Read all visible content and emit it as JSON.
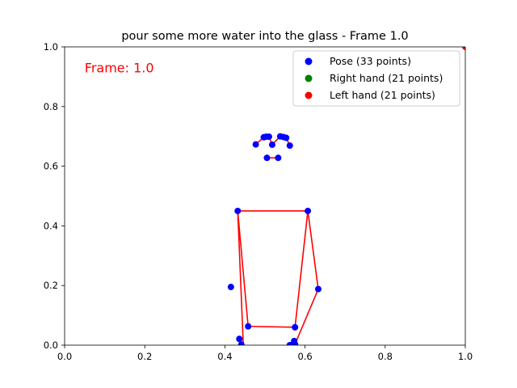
{
  "chart_data": {
    "type": "scatter",
    "title": "pour some more water into the glass - Frame 1.0",
    "annotation": {
      "text": "Frame: 1.0",
      "color": "#ff0000"
    },
    "xlim": [
      0,
      1
    ],
    "ylim": [
      0,
      1
    ],
    "x_ticks": [
      "0.0",
      "0.2",
      "0.4",
      "0.6",
      "0.8",
      "1.0"
    ],
    "y_ticks": [
      "0.0",
      "0.2",
      "0.4",
      "0.6",
      "0.8",
      "1.0"
    ],
    "grid": false,
    "legend_position": "top-right",
    "series": [
      {
        "name": "Pose (33 points)",
        "color": "#0000ff",
        "points": [
          [
            0.518,
            0.672
          ],
          [
            0.497,
            0.697
          ],
          [
            0.503,
            0.699
          ],
          [
            0.51,
            0.699
          ],
          [
            0.538,
            0.7
          ],
          [
            0.546,
            0.698
          ],
          [
            0.553,
            0.695
          ],
          [
            0.477,
            0.673
          ],
          [
            0.562,
            0.669
          ],
          [
            0.505,
            0.628
          ],
          [
            0.533,
            0.628
          ],
          [
            0.432,
            0.45
          ],
          [
            0.607,
            0.45
          ],
          [
            0.415,
            0.195
          ],
          [
            0.633,
            0.188
          ],
          [
            0.436,
            0.021
          ],
          [
            0.573,
            0.014
          ],
          [
            0.441,
            0.002
          ],
          [
            0.57,
            0.003
          ],
          [
            0.458,
            0.063
          ],
          [
            0.575,
            0.06
          ],
          [
            0.562,
            0.0
          ],
          [
            0.575,
            0.003
          ]
        ]
      },
      {
        "name": "Right hand (21 points)",
        "color": "#008000",
        "points": []
      },
      {
        "name": "Left hand (21 points)",
        "color": "#ff0000",
        "points": [
          [
            1.0,
            1.0
          ]
        ]
      }
    ],
    "connections": {
      "color": "#ff0000",
      "segments": [
        [
          [
            0.497,
            0.697
          ],
          [
            0.51,
            0.699
          ]
        ],
        [
          [
            0.51,
            0.699
          ],
          [
            0.518,
            0.672
          ]
        ],
        [
          [
            0.518,
            0.672
          ],
          [
            0.538,
            0.7
          ]
        ],
        [
          [
            0.538,
            0.7
          ],
          [
            0.553,
            0.695
          ]
        ],
        [
          [
            0.477,
            0.673
          ],
          [
            0.497,
            0.697
          ]
        ],
        [
          [
            0.553,
            0.695
          ],
          [
            0.562,
            0.669
          ]
        ],
        [
          [
            0.505,
            0.628
          ],
          [
            0.533,
            0.628
          ]
        ],
        [
          [
            0.432,
            0.45
          ],
          [
            0.607,
            0.45
          ]
        ],
        [
          [
            0.432,
            0.45
          ],
          [
            0.458,
            0.063
          ]
        ],
        [
          [
            0.607,
            0.45
          ],
          [
            0.575,
            0.06
          ]
        ],
        [
          [
            0.458,
            0.063
          ],
          [
            0.575,
            0.06
          ]
        ],
        [
          [
            0.432,
            0.45
          ],
          [
            0.446,
            0.0
          ]
        ],
        [
          [
            0.607,
            0.45
          ],
          [
            0.633,
            0.188
          ]
        ],
        [
          [
            0.633,
            0.188
          ],
          [
            0.575,
            0.003
          ]
        ]
      ]
    }
  }
}
